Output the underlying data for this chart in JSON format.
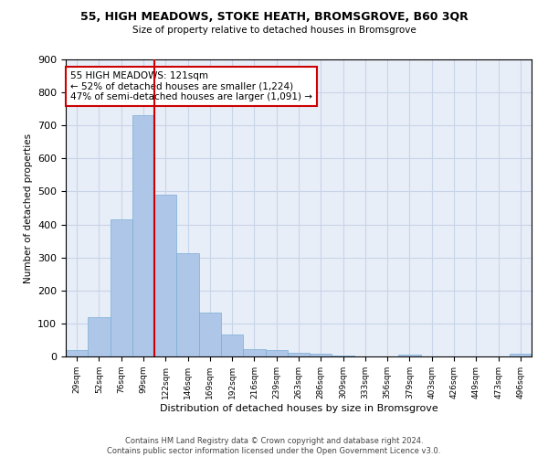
{
  "title_line1": "55, HIGH MEADOWS, STOKE HEATH, BROMSGROVE, B60 3QR",
  "title_line2": "Size of property relative to detached houses in Bromsgrove",
  "xlabel": "Distribution of detached houses by size in Bromsgrove",
  "ylabel": "Number of detached properties",
  "bin_labels": [
    "29sqm",
    "52sqm",
    "76sqm",
    "99sqm",
    "122sqm",
    "146sqm",
    "169sqm",
    "192sqm",
    "216sqm",
    "239sqm",
    "263sqm",
    "286sqm",
    "309sqm",
    "333sqm",
    "356sqm",
    "379sqm",
    "403sqm",
    "426sqm",
    "449sqm",
    "473sqm",
    "496sqm"
  ],
  "bar_heights": [
    20,
    120,
    415,
    730,
    490,
    313,
    133,
    67,
    22,
    20,
    10,
    8,
    4,
    0,
    0,
    5,
    0,
    0,
    0,
    0,
    8
  ],
  "bar_color": "#aec6e8",
  "bar_edge_color": "#7aadd4",
  "vline_color": "#cc0000",
  "vline_x_index": 3.5,
  "annotation_text": "55 HIGH MEADOWS: 121sqm\n← 52% of detached houses are smaller (1,224)\n47% of semi-detached houses are larger (1,091) →",
  "annotation_box_color": "#ffffff",
  "annotation_box_edge_color": "#cc0000",
  "ylim": [
    0,
    900
  ],
  "yticks": [
    0,
    100,
    200,
    300,
    400,
    500,
    600,
    700,
    800,
    900
  ],
  "grid_color": "#c8d4e8",
  "background_color": "#e8eef8",
  "footer_line1": "Contains HM Land Registry data © Crown copyright and database right 2024.",
  "footer_line2": "Contains public sector information licensed under the Open Government Licence v3.0."
}
